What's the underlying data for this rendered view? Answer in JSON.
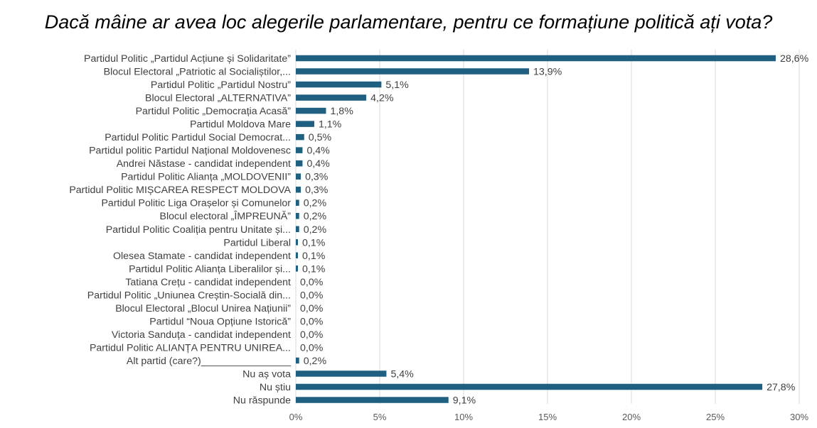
{
  "chart_data": {
    "type": "bar",
    "orientation": "horizontal",
    "title": "Dacă mâine ar avea loc alegerile parlamentare, pentru ce formațiune politică ați vota?",
    "xlim": [
      0,
      30
    ],
    "x_ticks": [
      0,
      5,
      10,
      15,
      20,
      25,
      30
    ],
    "x_tick_labels": [
      "0%",
      "5%",
      "10%",
      "15%",
      "20%",
      "25%",
      "30%"
    ],
    "grid": true,
    "bar_color": "#1f5f7f",
    "categories": [
      "Partidul Politic „Partidul Acțiune și Solidaritate”",
      "Blocul Electoral „Patriotic al Socialiștilor,...",
      "Partidul Politic „Partidul Nostru”",
      "Blocul Electoral „ALTERNATIVA”",
      "Partidul Politic „Democrația Acasă”",
      "Partidul Moldova Mare",
      "Partidul Politic Partidul Social Democrat...",
      "Partidul politic Partidul Național Moldovenesc",
      "Andrei Năstase - candidat independent",
      "Partidul Politic Alianța „MOLDOVENII”",
      "Partidul Politic MIȘCAREA RESPECT MOLDOVA",
      "Partidul Politic Liga Orașelor și Comunelor",
      "Blocul electoral „ÎMPREUNĂ”",
      "Partidul Politic Coaliția pentru Unitate și...",
      "Partidul Liberal",
      "Olesea Stamate - candidat independent",
      "Partidul Politic Alianța Liberalilor și...",
      "Tatiana Crețu - candidat independent",
      "Partidul Politic „Uniunea Creștin-Socială din...",
      "Blocul Electoral „Blocul Unirea Națiunii”",
      "Partidul “Noua Opțiune Istorică”",
      "Victoria Sanduța - candidat independent",
      "Partidul Politic ALIANȚA PENTRU UNIREA...",
      "Alt partid (care?)________________",
      "Nu aș vota",
      "Nu știu",
      "Nu răspunde"
    ],
    "values": [
      28.6,
      13.9,
      5.1,
      4.2,
      1.8,
      1.1,
      0.5,
      0.4,
      0.4,
      0.3,
      0.3,
      0.2,
      0.2,
      0.2,
      0.1,
      0.1,
      0.1,
      0.0,
      0.0,
      0.0,
      0.0,
      0.0,
      0.0,
      0.2,
      5.4,
      27.8,
      9.1
    ],
    "value_labels": [
      "28,6%",
      "13,9%",
      "5,1%",
      "4,2%",
      "1,8%",
      "1,1%",
      "0,5%",
      "0,4%",
      "0,4%",
      "0,3%",
      "0,3%",
      "0,2%",
      "0,2%",
      "0,2%",
      "0,1%",
      "0,1%",
      "0,1%",
      "0,0%",
      "0,0%",
      "0,0%",
      "0,0%",
      "0,0%",
      "0,0%",
      "0,2%",
      "5,4%",
      "27,8%",
      "9,1%"
    ]
  }
}
